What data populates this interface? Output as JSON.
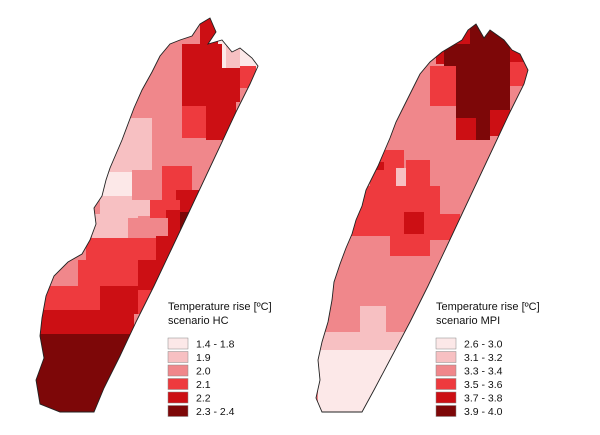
{
  "maps": [
    {
      "scenario": "HC",
      "legend": {
        "title": "Temperature rise [ºC]",
        "subtitle": "scenario HC",
        "classes": [
          {
            "label": "1.4 - 1.8",
            "color": "#fce8e8"
          },
          {
            "label": "1.9",
            "color": "#f7c0c2"
          },
          {
            "label": "2.0",
            "color": "#f0878b"
          },
          {
            "label": "2.1",
            "color": "#ee3a3e"
          },
          {
            "label": "2.2",
            "color": "#cc0f14"
          },
          {
            "label": "2.3 - 2.4",
            "color": "#7d0708"
          }
        ]
      }
    },
    {
      "scenario": "MPI",
      "legend": {
        "title": "Temperature rise [ºC]",
        "subtitle": "scenario MPI",
        "classes": [
          {
            "label": "2.6 - 3.0",
            "color": "#fce8e8"
          },
          {
            "label": "3.1 - 3.2",
            "color": "#f7c0c2"
          },
          {
            "label": "3.3 - 3.4",
            "color": "#f0878b"
          },
          {
            "label": "3.5 - 3.6",
            "color": "#ee3a3e"
          },
          {
            "label": "3.7 - 3.8",
            "color": "#cc0f14"
          },
          {
            "label": "3.9 - 4.0",
            "color": "#7d0708"
          }
        ]
      }
    }
  ]
}
